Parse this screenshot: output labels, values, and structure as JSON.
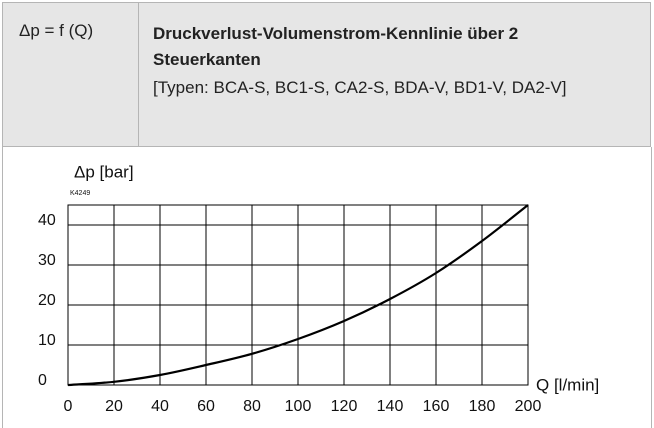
{
  "header": {
    "formula": "Δp = f (Q)",
    "title": "Druckverlust-Volumenstrom-Kennlinie über 2 Steuerkanten",
    "types": "[Typen: BCA-S, BC1-S, CA2-S, BDA-V, BD1-V, DA2-V]"
  },
  "chart_data": {
    "type": "line",
    "ylabel": "Δp [bar]",
    "xlabel": "Q [l/min]",
    "annotation": "K4249",
    "x": [
      0,
      20,
      40,
      60,
      80,
      100,
      120,
      140,
      160,
      180,
      200
    ],
    "series": [
      {
        "name": "Δp",
        "color": "#000000",
        "values": [
          0,
          0.8,
          2.5,
          5,
          7.8,
          11.5,
          16,
          21.5,
          28,
          36,
          45
        ]
      }
    ],
    "xlim": [
      0,
      200
    ],
    "ylim": [
      0,
      45
    ],
    "xticks": [
      0,
      20,
      40,
      60,
      80,
      100,
      120,
      140,
      160,
      180,
      200
    ],
    "yticks": [
      0,
      10,
      20,
      30,
      40
    ],
    "grid": true
  }
}
